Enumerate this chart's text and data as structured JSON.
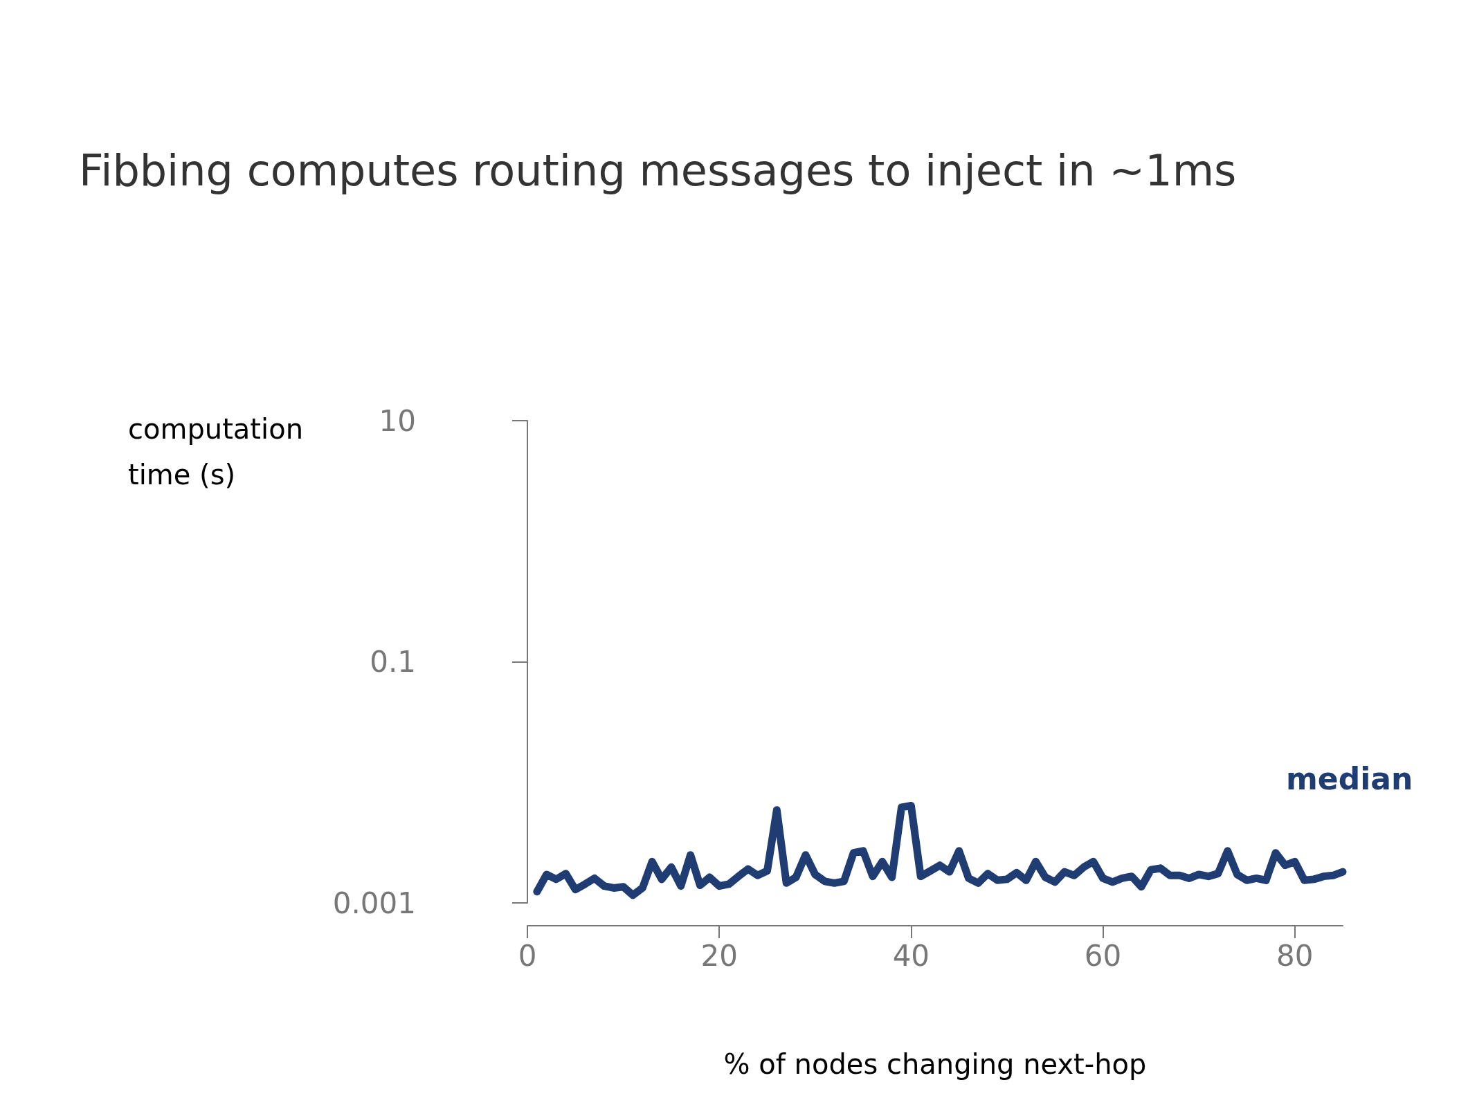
{
  "chart_data": {
    "type": "line",
    "title": "Fibbing computes routing messages to inject in ~1ms",
    "xlabel": "% of nodes changing next-hop",
    "ylabel": "computation time (s)",
    "x": [
      1,
      2,
      3,
      4,
      5,
      6,
      7,
      8,
      9,
      10,
      11,
      12,
      13,
      14,
      15,
      16,
      17,
      18,
      19,
      20,
      21,
      22,
      23,
      24,
      25,
      26,
      27,
      28,
      29,
      30,
      31,
      32,
      33,
      34,
      35,
      36,
      37,
      38,
      39,
      40,
      41,
      42,
      43,
      44,
      45,
      46,
      47,
      48,
      49,
      50,
      51,
      52,
      53,
      54,
      55,
      56,
      57,
      58,
      59,
      60,
      61,
      62,
      63,
      64,
      65,
      66,
      67,
      68,
      69,
      70,
      71,
      72,
      73,
      74,
      75,
      76,
      77,
      78,
      79,
      80,
      81,
      82,
      83,
      84,
      85
    ],
    "series": [
      {
        "name": "median",
        "color": "#1f3d73",
        "values": [
          0.00124,
          0.00172,
          0.00157,
          0.00175,
          0.00129,
          0.00143,
          0.0016,
          0.00138,
          0.00133,
          0.00136,
          0.00116,
          0.00133,
          0.0022,
          0.00157,
          0.00198,
          0.00138,
          0.0025,
          0.0014,
          0.00163,
          0.00138,
          0.00143,
          0.00166,
          0.00191,
          0.00169,
          0.00184,
          0.0059,
          0.00146,
          0.00163,
          0.0025,
          0.00172,
          0.00151,
          0.00146,
          0.00151,
          0.0026,
          0.0027,
          0.00166,
          0.0022,
          0.00163,
          0.0062,
          0.0064,
          0.00166,
          0.00184,
          0.00205,
          0.00181,
          0.0027,
          0.0016,
          0.00146,
          0.00175,
          0.00154,
          0.00157,
          0.00178,
          0.00154,
          0.0022,
          0.00163,
          0.00149,
          0.00181,
          0.00169,
          0.00198,
          0.0022,
          0.0016,
          0.00149,
          0.0016,
          0.00166,
          0.00136,
          0.00188,
          0.00194,
          0.00169,
          0.00169,
          0.0016,
          0.00172,
          0.00166,
          0.00175,
          0.0027,
          0.00172,
          0.00154,
          0.0016,
          0.00154,
          0.0026,
          0.00205,
          0.0022,
          0.00154,
          0.00157,
          0.00166,
          0.00169,
          0.00181
        ]
      }
    ],
    "log": "y",
    "xlim": [
      0,
      85
    ],
    "xticks": [
      0,
      20,
      40,
      60,
      80
    ],
    "ylim": [
      0.001,
      10
    ],
    "yticks": [
      0.001,
      0.1,
      10
    ],
    "grid": false,
    "legend": false,
    "marker": "none",
    "line_style": "solid"
  }
}
